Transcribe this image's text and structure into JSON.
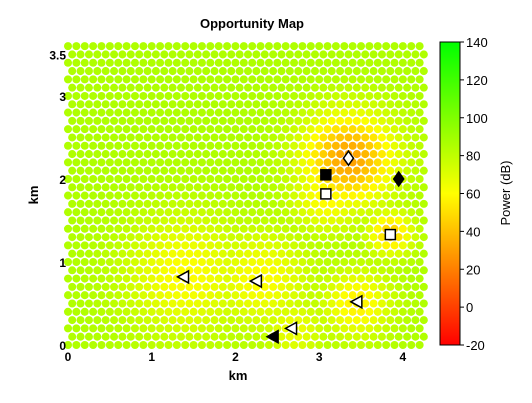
{
  "chart_data": {
    "type": "heatmap",
    "title": "Opportunity Map",
    "xlabel": "km",
    "ylabel": "km",
    "xlim": [
      0,
      4.3
    ],
    "ylim": [
      0,
      3.65
    ],
    "x_ticks": [
      "0",
      "1",
      "2",
      "3",
      "4"
    ],
    "y_ticks": [
      "0",
      "1",
      "2",
      "3",
      "3.5"
    ],
    "grid": false,
    "colorbar": {
      "label": "Power (dB)",
      "min": -20,
      "max": 140,
      "ticks": [
        "140",
        "120",
        "100",
        "80",
        "60",
        "40",
        "20",
        "0",
        "-20"
      ],
      "colors": [
        "#ff0000",
        "#ffff00",
        "#00ff00"
      ]
    },
    "grid_spacing_km": 0.1,
    "base_power_db": 85,
    "hotspots": [
      {
        "x": 3.35,
        "y": 2.25,
        "power_db": 30,
        "radius_km": 0.38
      },
      {
        "x": 3.45,
        "y": 0.5,
        "power_db": 55,
        "radius_km": 0.28
      },
      {
        "x": 1.4,
        "y": 0.85,
        "power_db": 60,
        "radius_km": 0.5
      },
      {
        "x": 2.3,
        "y": 0.8,
        "power_db": 60,
        "radius_km": 0.4
      },
      {
        "x": 3.85,
        "y": 1.35,
        "power_db": 45,
        "radius_km": 0.18
      },
      {
        "x": 3.1,
        "y": 1.8,
        "power_db": 58,
        "radius_km": 0.3
      },
      {
        "x": 2.7,
        "y": 0.2,
        "power_db": 65,
        "radius_km": 0.25
      }
    ],
    "markers": [
      {
        "shape": "square",
        "fill": "black",
        "x": 3.08,
        "y": 2.05
      },
      {
        "shape": "square",
        "fill": "open",
        "x": 3.08,
        "y": 1.82
      },
      {
        "shape": "square",
        "fill": "open",
        "x": 3.85,
        "y": 1.33
      },
      {
        "shape": "diamond",
        "fill": "open",
        "x": 3.35,
        "y": 2.25
      },
      {
        "shape": "diamond",
        "fill": "black",
        "x": 3.95,
        "y": 2.0
      },
      {
        "shape": "triangle-left",
        "fill": "open",
        "x": 1.38,
        "y": 0.82
      },
      {
        "shape": "triangle-left",
        "fill": "open",
        "x": 2.25,
        "y": 0.77
      },
      {
        "shape": "triangle-left",
        "fill": "open",
        "x": 3.45,
        "y": 0.52
      },
      {
        "shape": "triangle-left",
        "fill": "open",
        "x": 2.67,
        "y": 0.2
      },
      {
        "shape": "triangle-left",
        "fill": "black",
        "x": 2.45,
        "y": 0.1
      }
    ]
  }
}
